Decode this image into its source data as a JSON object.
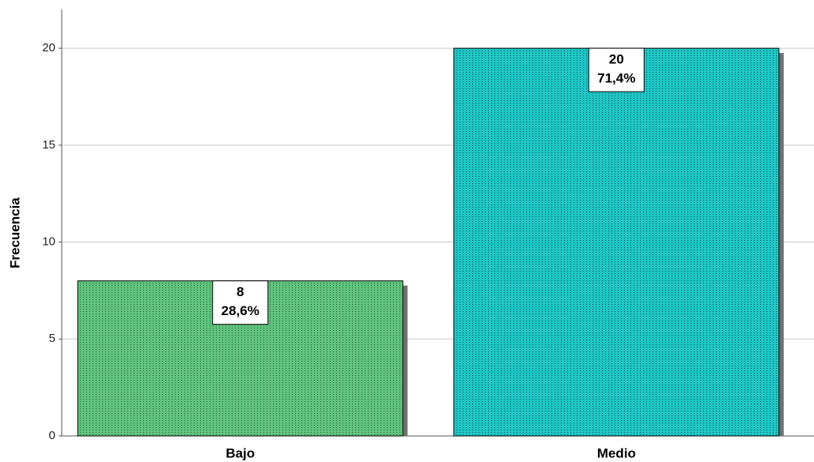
{
  "chart_data": {
    "type": "bar",
    "y_label": "Frecuencia",
    "categories": [
      "Bajo",
      "Medio"
    ],
    "values": [
      8,
      20
    ],
    "percent_labels": [
      "28,6%",
      "71,4%"
    ],
    "colors": [
      "#5fc47e",
      "#1ec6c6"
    ],
    "ylim": [
      0,
      22
    ],
    "yticks": [
      0,
      5,
      10,
      15,
      20
    ],
    "grid": true
  }
}
